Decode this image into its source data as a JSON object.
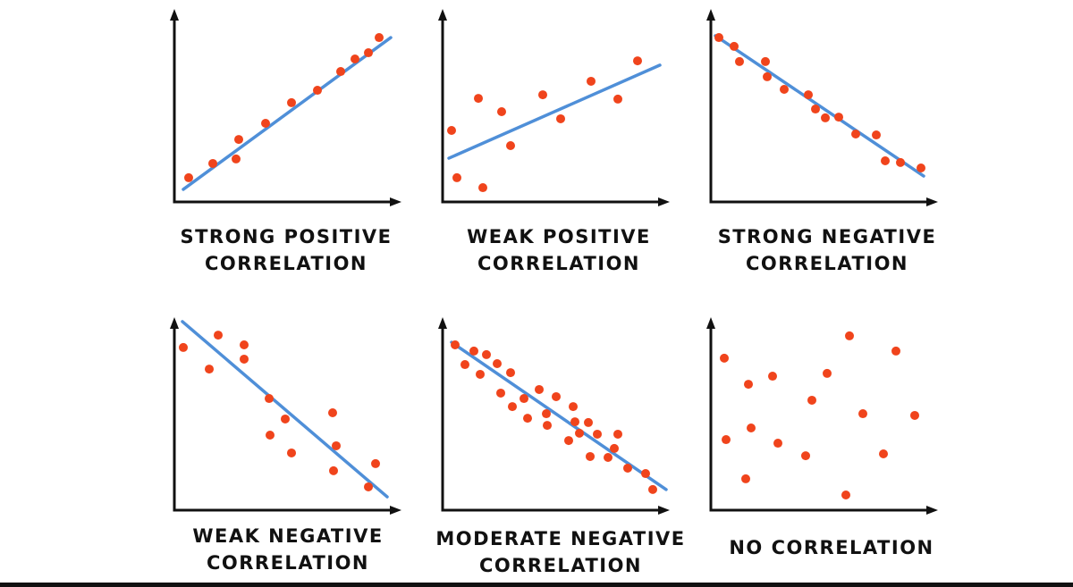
{
  "colors": {
    "point": "#f0441c",
    "trend_line": "#4f8fd8",
    "axis": "#111111"
  },
  "chart_data": [
    {
      "type": "scatter",
      "label_lines": [
        "STRONG POSITIVE",
        "CORRELATION"
      ],
      "xlim": [
        0,
        10
      ],
      "ylim": [
        0,
        10
      ],
      "grid": false,
      "points": [
        [
          0.64,
          1.29
        ],
        [
          1.72,
          2.05
        ],
        [
          2.76,
          2.29
        ],
        [
          2.88,
          3.33
        ],
        [
          4.08,
          4.19
        ],
        [
          5.24,
          5.29
        ],
        [
          6.4,
          5.95
        ],
        [
          7.44,
          6.95
        ],
        [
          8.08,
          7.62
        ],
        [
          8.68,
          7.95
        ],
        [
          9.16,
          8.76
        ]
      ],
      "trend_line": [
        [
          0.4,
          0.67
        ],
        [
          9.68,
          8.76
        ]
      ]
    },
    {
      "type": "scatter",
      "label_lines": [
        "WEAK POSITIVE",
        "CORRELATION"
      ],
      "xlim": [
        0,
        10
      ],
      "ylim": [
        0,
        10
      ],
      "grid": false,
      "points": [
        [
          0.4,
          3.81
        ],
        [
          0.64,
          1.29
        ],
        [
          1.6,
          5.52
        ],
        [
          1.8,
          0.76
        ],
        [
          2.64,
          4.81
        ],
        [
          3.04,
          3.0
        ],
        [
          4.48,
          5.71
        ],
        [
          5.28,
          4.43
        ],
        [
          6.64,
          6.43
        ],
        [
          7.84,
          5.48
        ],
        [
          8.72,
          7.52
        ]
      ],
      "trend_line": [
        [
          0.28,
          2.33
        ],
        [
          9.72,
          7.29
        ]
      ]
    },
    {
      "type": "scatter",
      "label_lines": [
        "STRONG NEGATIVE",
        "CORRELATION"
      ],
      "xlim": [
        0,
        10
      ],
      "ylim": [
        0,
        10
      ],
      "grid": false,
      "points": [
        [
          0.36,
          8.76
        ],
        [
          1.04,
          8.29
        ],
        [
          1.28,
          7.48
        ],
        [
          2.44,
          7.48
        ],
        [
          2.52,
          6.67
        ],
        [
          3.28,
          6.0
        ],
        [
          4.36,
          5.71
        ],
        [
          4.68,
          4.95
        ],
        [
          5.12,
          4.48
        ],
        [
          5.72,
          4.52
        ],
        [
          6.48,
          3.62
        ],
        [
          7.4,
          3.57
        ],
        [
          7.8,
          2.19
        ],
        [
          8.48,
          2.1
        ],
        [
          9.4,
          1.81
        ]
      ],
      "trend_line": [
        [
          0.2,
          8.86
        ],
        [
          9.52,
          1.38
        ]
      ]
    },
    {
      "type": "scatter",
      "label_lines": [
        "WEAK NEGATIVE",
        "CORRELATION"
      ],
      "xlim": [
        0,
        10
      ],
      "ylim": [
        0,
        10
      ],
      "grid": false,
      "points": [
        [
          0.4,
          8.67
        ],
        [
          1.56,
          7.52
        ],
        [
          1.96,
          9.33
        ],
        [
          3.12,
          8.81
        ],
        [
          3.12,
          8.05
        ],
        [
          4.24,
          5.95
        ],
        [
          4.96,
          4.86
        ],
        [
          4.28,
          4.0
        ],
        [
          5.24,
          3.05
        ],
        [
          7.08,
          5.19
        ],
        [
          7.24,
          3.43
        ],
        [
          7.12,
          2.1
        ],
        [
          9.0,
          2.48
        ],
        [
          8.68,
          1.24
        ]
      ],
      "trend_line": [
        [
          0.36,
          10.05
        ],
        [
          9.52,
          0.71
        ]
      ]
    },
    {
      "type": "scatter",
      "label_lines": [
        "MODERATE NEGATIVE",
        "CORRELATION"
      ],
      "xlim": [
        0,
        10
      ],
      "ylim": [
        0,
        10
      ],
      "grid": false,
      "points": [
        [
          0.56,
          8.81
        ],
        [
          1.0,
          7.76
        ],
        [
          1.4,
          8.48
        ],
        [
          1.68,
          7.24
        ],
        [
          1.96,
          8.29
        ],
        [
          2.44,
          7.81
        ],
        [
          3.04,
          7.33
        ],
        [
          2.6,
          6.24
        ],
        [
          3.12,
          5.52
        ],
        [
          3.64,
          5.95
        ],
        [
          3.8,
          4.9
        ],
        [
          4.32,
          6.43
        ],
        [
          4.64,
          5.14
        ],
        [
          5.08,
          6.05
        ],
        [
          4.68,
          4.52
        ],
        [
          5.64,
          3.71
        ],
        [
          5.84,
          5.52
        ],
        [
          5.92,
          4.71
        ],
        [
          6.12,
          4.1
        ],
        [
          6.52,
          4.67
        ],
        [
          6.6,
          2.86
        ],
        [
          6.92,
          4.05
        ],
        [
          7.4,
          2.81
        ],
        [
          7.68,
          3.29
        ],
        [
          7.84,
          4.05
        ],
        [
          8.28,
          2.24
        ],
        [
          9.08,
          1.95
        ],
        [
          9.4,
          1.1
        ]
      ],
      "trend_line": [
        [
          0.4,
          8.95
        ],
        [
          10.0,
          1.1
        ]
      ]
    },
    {
      "type": "scatter",
      "label_lines": [
        "NO CORRELATION"
      ],
      "xlim": [
        0,
        10
      ],
      "ylim": [
        0,
        10
      ],
      "grid": false,
      "points": [
        [
          0.6,
          8.1
        ],
        [
          1.68,
          6.71
        ],
        [
          2.76,
          7.14
        ],
        [
          1.8,
          4.38
        ],
        [
          0.68,
          3.76
        ],
        [
          1.56,
          1.67
        ],
        [
          3.0,
          3.57
        ],
        [
          4.24,
          2.9
        ],
        [
          4.52,
          5.86
        ],
        [
          5.2,
          7.29
        ],
        [
          6.2,
          9.29
        ],
        [
          6.04,
          0.81
        ],
        [
          6.8,
          5.14
        ],
        [
          7.72,
          3.0
        ],
        [
          8.28,
          8.48
        ],
        [
          9.12,
          5.05
        ]
      ],
      "trend_line": null
    }
  ]
}
